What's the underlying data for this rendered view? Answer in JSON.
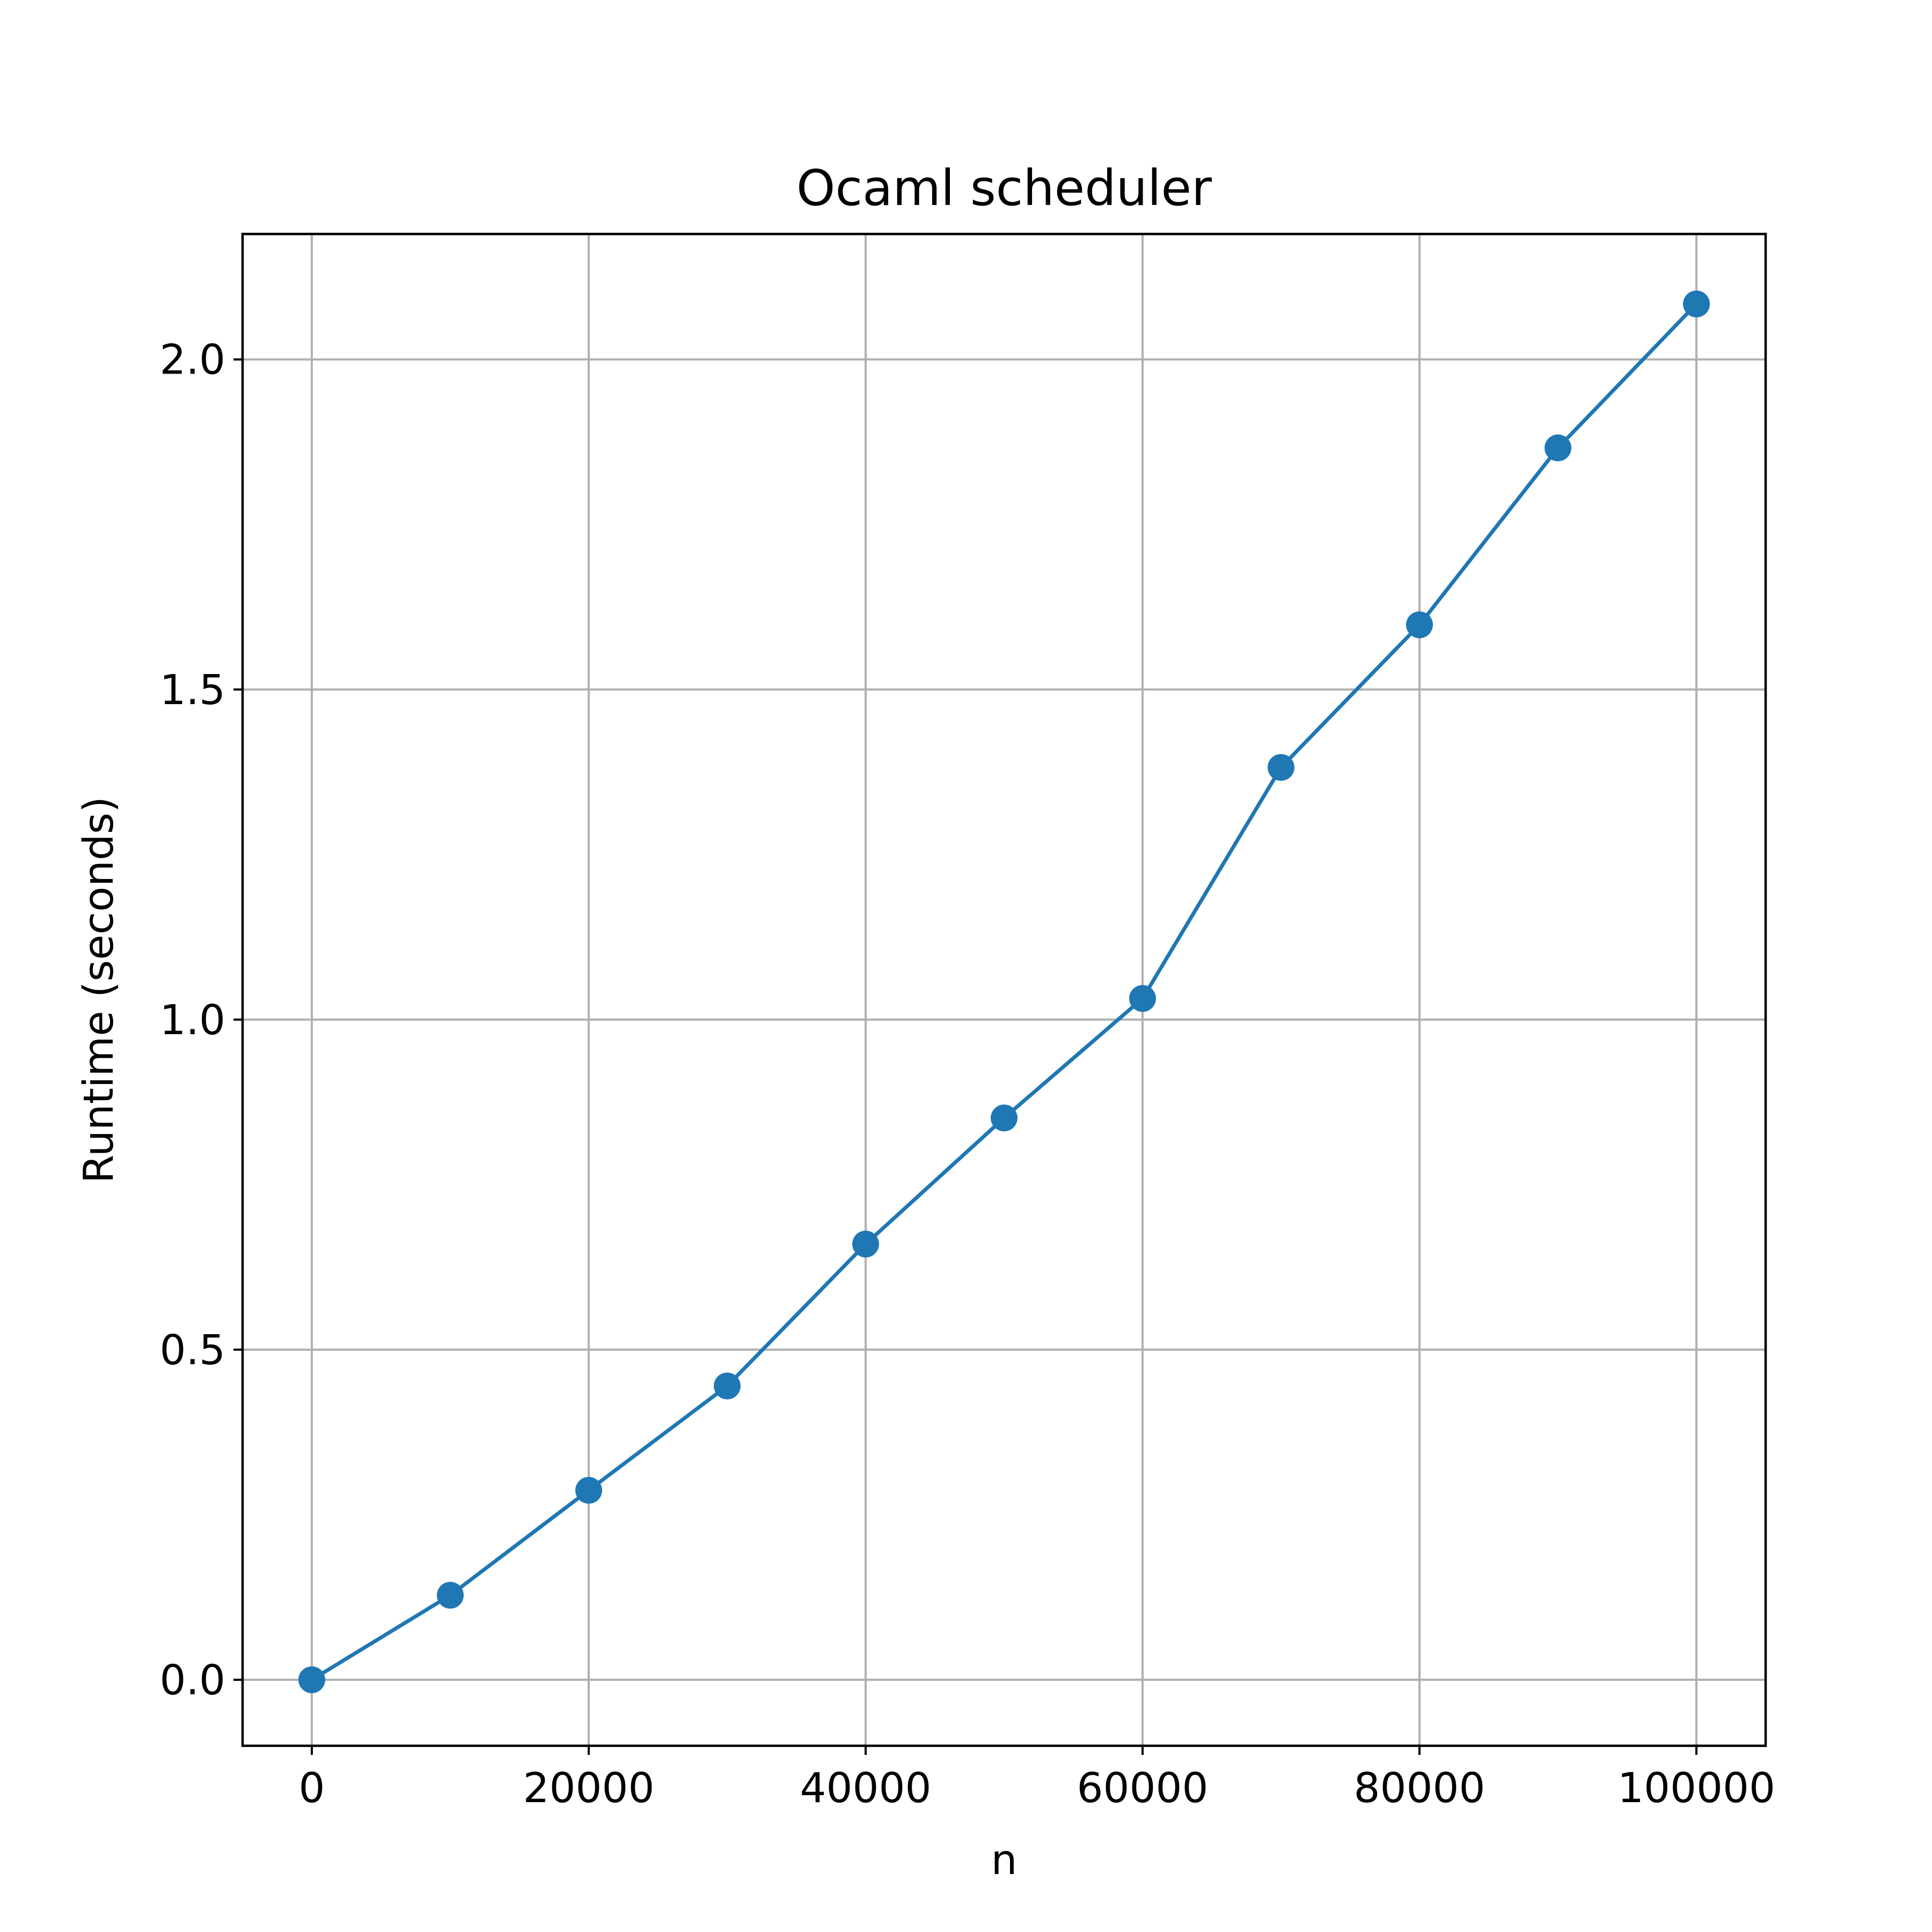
{
  "chart_data": {
    "type": "line",
    "title": "Ocaml scheduler",
    "xlabel": "n",
    "ylabel": "Runtime (seconds)",
    "xlim": [
      -5000,
      105000
    ],
    "ylim": [
      -0.1,
      2.19
    ],
    "xticks": [
      0,
      20000,
      40000,
      60000,
      80000,
      100000
    ],
    "xtick_labels": [
      "0",
      "20000",
      "40000",
      "60000",
      "80000",
      "100000"
    ],
    "yticks": [
      0.0,
      0.5,
      1.0,
      1.5,
      2.0
    ],
    "ytick_labels": [
      "0.0",
      "0.5",
      "1.0",
      "1.5",
      "2.0"
    ],
    "grid": true,
    "legend": false,
    "series": [
      {
        "color": "#1f77b4",
        "marker": "circle",
        "x": [
          0,
          10000,
          20000,
          30000,
          40000,
          50000,
          60000,
          70000,
          80000,
          90000,
          100000
        ],
        "y": [
          0.0,
          0.128,
          0.287,
          0.445,
          0.66,
          0.851,
          1.032,
          1.382,
          1.598,
          1.866,
          2.084
        ]
      }
    ]
  }
}
